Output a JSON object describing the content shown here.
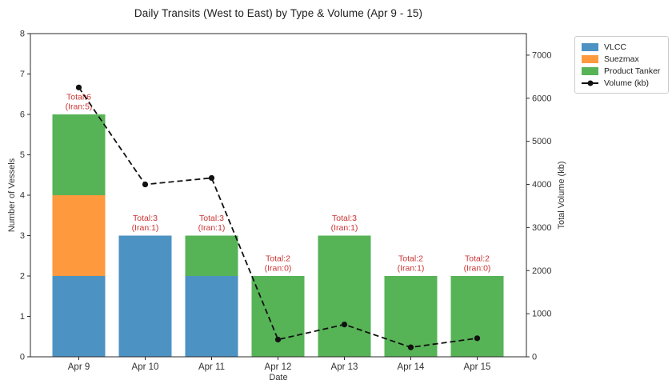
{
  "chart_data": {
    "type": "bar",
    "stacked": true,
    "title": "Daily Transits (West to East) by Type & Volume (Apr 9 - 15)",
    "xlabel": "Date",
    "ylabel_left": "Number of Vessels",
    "ylabel_right": "Total Volume (kb)",
    "categories": [
      "Apr 9",
      "Apr 10",
      "Apr 11",
      "Apr 12",
      "Apr 13",
      "Apr 14",
      "Apr 15"
    ],
    "series": [
      {
        "name": "VLCC",
        "color": "#4c92c3",
        "values": [
          2,
          3,
          2,
          0,
          0,
          0,
          0
        ]
      },
      {
        "name": "Suezmax",
        "color": "#ff993e",
        "values": [
          2,
          0,
          0,
          0,
          0,
          0,
          0
        ]
      },
      {
        "name": "Product Tanker",
        "color": "#56b356",
        "values": [
          2,
          0,
          1,
          2,
          3,
          2,
          2
        ]
      }
    ],
    "line_series": {
      "name": "Volume (kb)",
      "axis": "right",
      "style": "dashed",
      "marker": "circle",
      "color": "#111111",
      "values": [
        6250,
        4000,
        4150,
        400,
        750,
        220,
        430
      ]
    },
    "totals": [
      6,
      3,
      3,
      2,
      3,
      2,
      2
    ],
    "annotations": [
      {
        "line1": "Total:6",
        "line2": "(Iran:5)"
      },
      {
        "line1": "Total:3",
        "line2": "(Iran:1)"
      },
      {
        "line1": "Total:3",
        "line2": "(Iran:1)"
      },
      {
        "line1": "Total:2",
        "line2": "(Iran:0)"
      },
      {
        "line1": "Total:3",
        "line2": "(Iran:1)"
      },
      {
        "line1": "Total:2",
        "line2": "(Iran:1)"
      },
      {
        "line1": "Total:2",
        "line2": "(Iran:0)"
      }
    ],
    "annotation_color": "#cc3333",
    "ylim_left": [
      0,
      8
    ],
    "ylim_right": [
      0,
      7500
    ],
    "yticks_left": [
      0,
      1,
      2,
      3,
      4,
      5,
      6,
      7,
      8
    ],
    "yticks_right": [
      0,
      1000,
      2000,
      3000,
      4000,
      5000,
      6000,
      7000
    ],
    "grid": false,
    "legend_position": "outside-top-right",
    "legend": [
      {
        "label": "VLCC",
        "swatch": "patch",
        "color": "#4c92c3"
      },
      {
        "label": "Suezmax",
        "swatch": "patch",
        "color": "#ff993e"
      },
      {
        "label": "Product Tanker",
        "swatch": "patch",
        "color": "#56b356"
      },
      {
        "label": "Volume (kb)",
        "swatch": "line-dot",
        "color": "#111111"
      }
    ]
  }
}
